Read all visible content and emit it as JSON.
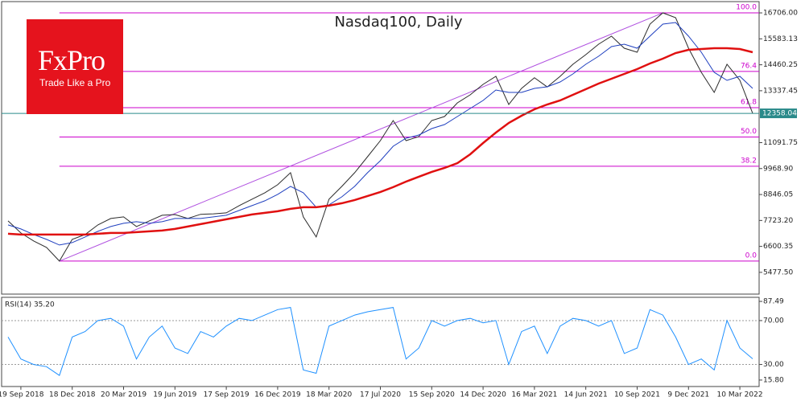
{
  "logo": {
    "brand": "FxPro",
    "tagline": "Trade Like a Pro"
  },
  "chart_data": [
    {
      "type": "line",
      "title": "Nasdaq100, Daily",
      "categories": [
        null,
        "19 Sep 2018",
        null,
        null,
        null,
        "18 Dec 2018",
        null,
        null,
        null,
        "20 Mar 2019",
        null,
        null,
        null,
        "19 Jun 2019",
        null,
        null,
        null,
        "17 Sep 2019",
        null,
        null,
        null,
        "16 Dec 2019",
        null,
        null,
        null,
        "18 Mar 2020",
        null,
        null,
        null,
        "17 Jul 2020",
        null,
        null,
        null,
        "15 Sep 2020",
        null,
        null,
        null,
        "14 Dec 2020",
        null,
        null,
        null,
        "16 Mar 2021",
        null,
        null,
        null,
        "14 Jun 2021",
        null,
        null,
        null,
        "10 Sep 2021",
        null,
        null,
        null,
        "9 Dec 2021",
        null,
        null,
        null,
        "10 Mar 2022",
        null
      ],
      "series": [
        {
          "color": "#2b2b2b",
          "values": [
            7703,
            7182,
            6834,
            6556,
            5965,
            6904,
            7112,
            7529,
            7807,
            7877,
            7460,
            7703,
            7947,
            7980,
            7807,
            7990,
            8010,
            8051,
            8363,
            8642,
            8920,
            9268,
            9789,
            7877,
            7008,
            8642,
            9198,
            9789,
            10484,
            11179,
            12048,
            11179,
            11353,
            12048,
            12222,
            12813,
            13160,
            13612,
            13960,
            12743,
            13439,
            13900,
            13500,
            13960,
            14481,
            14898,
            15350,
            15698,
            15177,
            15003,
            16219,
            16706,
            16497,
            15177,
            14134,
            13265,
            14481,
            13786,
            12358.04
          ]
        },
        {
          "color": "#1f3fbf",
          "values": [
            7529,
            7356,
            7112,
            6904,
            6661,
            6765,
            7008,
            7251,
            7460,
            7599,
            7668,
            7599,
            7668,
            7807,
            7807,
            7807,
            7877,
            7947,
            8155,
            8363,
            8572,
            8850,
            9198,
            8920,
            8294,
            8398,
            8746,
            9198,
            9789,
            10310,
            10936,
            11284,
            11423,
            11701,
            11874,
            12222,
            12570,
            12917,
            13369,
            13265,
            13265,
            13439,
            13508,
            13717,
            14064,
            14481,
            14829,
            15246,
            15350,
            15177,
            15698,
            16219,
            16289,
            15698,
            15003,
            14134,
            13786,
            13960,
            13439
          ]
        },
        {
          "color": "#e01010",
          "values": [
            7147,
            7112,
            7112,
            7112,
            7112,
            7112,
            7112,
            7147,
            7182,
            7182,
            7216,
            7251,
            7286,
            7356,
            7460,
            7564,
            7668,
            7773,
            7877,
            7981,
            8051,
            8120,
            8225,
            8294,
            8294,
            8363,
            8468,
            8607,
            8781,
            8955,
            9163,
            9406,
            9615,
            9824,
            9997,
            10206,
            10588,
            11075,
            11527,
            11944,
            12257,
            12535,
            12743,
            12917,
            13160,
            13404,
            13647,
            13856,
            14064,
            14273,
            14516,
            14725,
            14968,
            15107,
            15142,
            15177,
            15177,
            15142,
            15003
          ]
        }
      ],
      "ylim": [
        4536,
        17194
      ],
      "yticks": [
        {
          "value": 16706,
          "label": "16706.00"
        },
        {
          "value": 15583.13,
          "label": "15583.13"
        },
        {
          "value": 14460.25,
          "label": "14460.25"
        },
        {
          "value": 13337.45,
          "label": "13337.45"
        },
        {
          "value": 11091.75,
          "label": "11091.75"
        },
        {
          "value": 9968.9,
          "label": "9968.90"
        },
        {
          "value": 8846.05,
          "label": "8846.05"
        },
        {
          "value": 7723.2,
          "label": "7723.20"
        },
        {
          "value": 6600.35,
          "label": "6600.35"
        },
        {
          "value": 5477.5,
          "label": "5477.50"
        }
      ],
      "fib_levels": [
        {
          "label": "100.0",
          "price": 16706
        },
        {
          "label": "76.4",
          "price": 14171
        },
        {
          "label": "61.8",
          "price": 12603
        },
        {
          "label": "50.0",
          "price": 11336
        },
        {
          "label": "38.2",
          "price": 10068
        },
        {
          "label": "0.0",
          "price": 5965
        }
      ],
      "fib_color": "#cc00cc",
      "trendline_color": "#b050e0",
      "last_price": {
        "value": 12358.04,
        "label": "12358.04",
        "color": "#2a8a8a"
      }
    },
    {
      "type": "line",
      "title": "RSI(14) 35.20",
      "series": [
        {
          "color": "#1e90ff",
          "values": [
            55,
            35,
            30,
            28,
            20,
            55,
            60,
            70,
            72,
            65,
            35,
            55,
            65,
            45,
            40,
            60,
            55,
            65,
            72,
            70,
            75,
            80,
            82,
            25,
            22,
            65,
            70,
            75,
            78,
            80,
            82,
            35,
            45,
            70,
            65,
            70,
            72,
            68,
            70,
            30,
            60,
            65,
            40,
            65,
            72,
            70,
            65,
            70,
            40,
            45,
            80,
            75,
            55,
            30,
            35,
            25,
            70,
            45,
            35.2
          ]
        }
      ],
      "ylim": [
        9.9,
        91.2
      ],
      "yticks": [
        {
          "value": 87.49,
          "label": "87.49"
        },
        {
          "value": 70,
          "label": "70.00"
        },
        {
          "value": 30,
          "label": "30.00"
        },
        {
          "value": 15.8,
          "label": "15.80"
        }
      ],
      "grid": true
    }
  ]
}
